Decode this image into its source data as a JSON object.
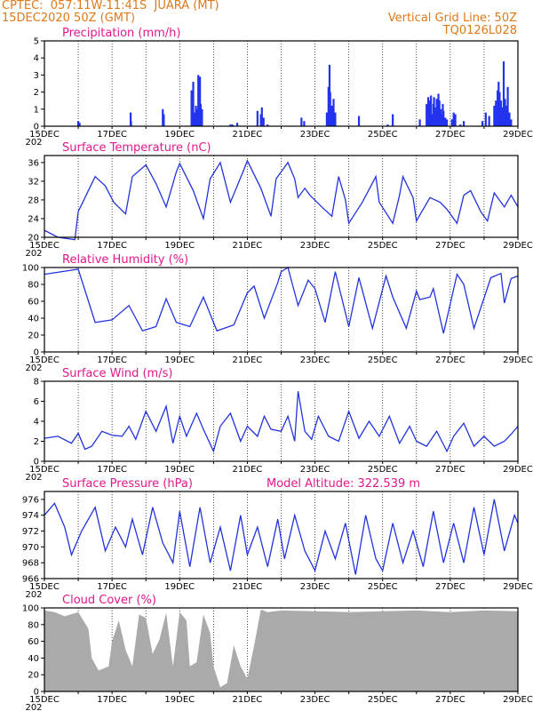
{
  "header": {
    "station": "CPTEC:  057:11W-11:41S  JUARA (MT)",
    "date": "15DEC2020 50Z (GMT)",
    "grid_note": "Vertical Grid Line: 50Z",
    "run_code": "TQ0126L028"
  },
  "x_axis": {
    "tick_labels": [
      "15DEC",
      "17DEC",
      "19DEC",
      "21DEC",
      "23DEC",
      "25DEC",
      "27DEC",
      "29DEC"
    ],
    "year_fragment": "202"
  },
  "colors": {
    "line": "#2233dd",
    "bars": "#2233ee",
    "cloud": "#aaaaaa",
    "title": "#e0188c",
    "header": "#e07818"
  },
  "chart_data": [
    {
      "type": "bar",
      "title": "Precipitation (mm/h)",
      "ylim": [
        0,
        5
      ],
      "yticks": [
        0,
        1,
        2,
        3,
        4,
        5
      ],
      "x": [
        1.0,
        1.04,
        2.55,
        2.56,
        3.5,
        3.53,
        4.35,
        4.4,
        4.45,
        4.48,
        4.52,
        4.55,
        4.6,
        4.62,
        4.66,
        5.5,
        5.56,
        5.7,
        6.3,
        6.4,
        6.43,
        6.48,
        6.6,
        7.6,
        7.68,
        8.35,
        8.4,
        8.43,
        8.45,
        8.5,
        8.55,
        8.6,
        9.3,
        10.15,
        10.3,
        11.1,
        11.3,
        11.35,
        11.38,
        11.4,
        11.43,
        11.45,
        11.5,
        11.52,
        11.55,
        11.6,
        11.63,
        11.65,
        11.68,
        11.72,
        11.75,
        11.78,
        11.8,
        11.85,
        11.9,
        12.05,
        12.1,
        12.15,
        12.3,
        12.4,
        12.95,
        13.05,
        13.15,
        13.3,
        13.35,
        13.4,
        13.43,
        13.46,
        13.5,
        13.55,
        13.58,
        13.62,
        13.66,
        13.7,
        13.75,
        13.8
      ],
      "values": [
        0.3,
        0.2,
        0.8,
        0.3,
        1.0,
        0.7,
        2.1,
        2.6,
        0.8,
        1.2,
        1.0,
        3.0,
        2.9,
        1.3,
        1.0,
        0.1,
        0.1,
        0.2,
        0.9,
        0.7,
        1.1,
        0.5,
        0.1,
        0.5,
        0.3,
        0.8,
        2.3,
        3.6,
        2.0,
        1.2,
        1.6,
        0.8,
        0.6,
        0.1,
        0.7,
        0.4,
        1.3,
        1.7,
        1.2,
        1.5,
        1.8,
        0.7,
        1.3,
        1.7,
        1.1,
        1.6,
        0.9,
        1.9,
        1.5,
        1.0,
        0.7,
        1.3,
        0.9,
        0.5,
        0.4,
        0.4,
        0.8,
        0.7,
        0.1,
        0.3,
        0.3,
        0.8,
        0.6,
        1.2,
        1.5,
        2.1,
        2.6,
        2.0,
        1.5,
        1.1,
        3.8,
        1.6,
        1.2,
        2.3,
        0.8,
        0.4
      ]
    },
    {
      "type": "line",
      "title": "Surface Temperature (nC)",
      "ylim": [
        20,
        37.5
      ],
      "yticks": [
        20,
        24,
        28,
        32,
        36
      ],
      "x": [
        0.0,
        0.4,
        0.9,
        1.0,
        1.5,
        1.8,
        2.05,
        2.4,
        2.6,
        3.0,
        3.3,
        3.6,
        3.9,
        4.0,
        4.4,
        4.7,
        4.9,
        5.2,
        5.5,
        5.9,
        6.0,
        6.4,
        6.7,
        6.85,
        7.2,
        7.4,
        7.5,
        7.7,
        7.85,
        8.2,
        8.5,
        8.7,
        8.9,
        9.0,
        9.4,
        9.8,
        9.9,
        10.3,
        10.5,
        10.6,
        10.9,
        11.0,
        11.4,
        11.7,
        11.9,
        12.2,
        12.4,
        12.6,
        12.9,
        13.1,
        13.3,
        13.6,
        13.8,
        14.0
      ],
      "values": [
        21.5,
        20.0,
        19.5,
        25.5,
        33.0,
        31.0,
        27.5,
        25.0,
        33.0,
        35.5,
        31.5,
        26.5,
        34.0,
        35.8,
        30.0,
        24.0,
        32.5,
        36.0,
        27.5,
        34.5,
        36.4,
        30.5,
        24.5,
        32.5,
        36.0,
        32.5,
        28.5,
        30.5,
        29.0,
        26.5,
        24.5,
        33.0,
        28.0,
        23.0,
        27.5,
        33.0,
        27.5,
        23.0,
        29.0,
        33.0,
        28.5,
        23.5,
        28.5,
        27.5,
        26.0,
        23.0,
        29.0,
        30.0,
        25.5,
        23.5,
        29.5,
        26.5,
        29.0,
        26.5
      ]
    },
    {
      "type": "line",
      "title": "Relative Humidity (%)",
      "ylim": [
        0,
        100
      ],
      "yticks": [
        0,
        20,
        40,
        60,
        80,
        100
      ],
      "x": [
        0.0,
        0.5,
        1.0,
        1.5,
        2.0,
        2.5,
        2.9,
        3.3,
        3.6,
        3.9,
        4.3,
        4.7,
        5.1,
        5.6,
        6.0,
        6.2,
        6.5,
        6.9,
        7.0,
        7.2,
        7.5,
        7.8,
        8.0,
        8.3,
        8.6,
        9.0,
        9.3,
        9.7,
        10.1,
        10.3,
        10.7,
        11.0,
        11.1,
        11.4,
        11.5,
        11.8,
        12.2,
        12.4,
        12.7,
        13.2,
        13.5,
        13.6,
        13.8,
        14.0
      ],
      "values": [
        92,
        95,
        98,
        35,
        38,
        55,
        25,
        30,
        63,
        35,
        30,
        65,
        25,
        32,
        70,
        78,
        40,
        82,
        95,
        100,
        55,
        85,
        75,
        35,
        95,
        30,
        88,
        28,
        90,
        65,
        28,
        72,
        62,
        65,
        75,
        22,
        92,
        80,
        28,
        88,
        93,
        58,
        87,
        90
      ]
    },
    {
      "type": "line",
      "title": "Surface Wind (m/s)",
      "ylim": [
        0,
        8
      ],
      "yticks": [
        0,
        2,
        4,
        6,
        8
      ],
      "x": [
        0.0,
        0.4,
        0.8,
        1.0,
        1.2,
        1.4,
        1.7,
        2.0,
        2.3,
        2.5,
        2.7,
        3.0,
        3.3,
        3.6,
        3.8,
        4.0,
        4.2,
        4.5,
        4.7,
        5.0,
        5.2,
        5.5,
        5.8,
        6.0,
        6.3,
        6.5,
        6.7,
        7.0,
        7.2,
        7.4,
        7.5,
        7.7,
        7.9,
        8.1,
        8.4,
        8.7,
        9.0,
        9.3,
        9.6,
        9.9,
        10.2,
        10.5,
        10.8,
        11.0,
        11.3,
        11.6,
        11.9,
        12.1,
        12.4,
        12.7,
        13.0,
        13.3,
        13.6,
        13.8,
        14.0
      ],
      "values": [
        2.3,
        2.5,
        1.8,
        2.8,
        1.2,
        1.5,
        3.0,
        2.6,
        2.5,
        3.5,
        2.2,
        5.0,
        3.0,
        5.5,
        1.8,
        4.5,
        2.5,
        4.8,
        3.2,
        1.0,
        3.5,
        4.8,
        2.0,
        3.5,
        2.5,
        4.5,
        3.2,
        3.0,
        4.5,
        2.0,
        7.0,
        3.0,
        2.2,
        4.5,
        2.5,
        2.0,
        5.0,
        2.3,
        4.0,
        2.5,
        4.5,
        1.8,
        3.5,
        2.0,
        1.5,
        3.0,
        1.0,
        2.5,
        3.8,
        1.5,
        2.5,
        1.5,
        2.0,
        2.7,
        3.5
      ]
    },
    {
      "type": "line",
      "title": "Surface Pressure (hPa)",
      "subtitle": "Model Altitude: 322.539 m",
      "ylim": [
        966,
        977
      ],
      "yticks": [
        966,
        968,
        970,
        972,
        974,
        976
      ],
      "x": [
        0.0,
        0.3,
        0.6,
        0.8,
        1.1,
        1.5,
        1.8,
        2.1,
        2.4,
        2.6,
        2.9,
        3.2,
        3.5,
        3.8,
        4.0,
        4.3,
        4.6,
        4.9,
        5.2,
        5.5,
        5.8,
        6.0,
        6.3,
        6.6,
        6.9,
        7.1,
        7.4,
        7.7,
        8.0,
        8.3,
        8.6,
        8.9,
        9.2,
        9.5,
        9.8,
        10.0,
        10.3,
        10.6,
        10.9,
        11.2,
        11.5,
        11.8,
        12.1,
        12.4,
        12.7,
        13.0,
        13.3,
        13.6,
        13.9,
        14.0
      ],
      "values": [
        974.0,
        975.5,
        972.5,
        969.0,
        972.0,
        975.0,
        969.5,
        972.5,
        970.0,
        973.5,
        969.0,
        975.0,
        970.5,
        968.0,
        974.5,
        967.5,
        975.0,
        968.0,
        972.5,
        967.0,
        974.0,
        969.0,
        972.5,
        967.5,
        973.5,
        968.5,
        974.0,
        969.5,
        967.0,
        972.0,
        968.5,
        973.0,
        966.5,
        974.0,
        968.5,
        967.0,
        973.0,
        968.0,
        972.0,
        967.5,
        974.5,
        968.0,
        973.0,
        968.0,
        975.0,
        969.0,
        976.0,
        969.5,
        974.0,
        973.0
      ]
    },
    {
      "type": "area",
      "title": "Cloud Cover (%)",
      "ylim": [
        0,
        100
      ],
      "yticks": [
        0,
        20,
        40,
        60,
        80,
        100
      ],
      "x": [
        0.0,
        0.3,
        0.6,
        1.0,
        1.3,
        1.4,
        1.6,
        1.9,
        2.0,
        2.2,
        2.4,
        2.6,
        2.8,
        3.0,
        3.2,
        3.4,
        3.6,
        3.8,
        4.0,
        4.2,
        4.3,
        4.5,
        4.7,
        4.9,
        5.0,
        5.2,
        5.4,
        5.6,
        5.8,
        6.0,
        6.2,
        6.4,
        6.6,
        7.0,
        8.0,
        9.0,
        10.0,
        11.0,
        12.0,
        13.0,
        14.0
      ],
      "values": [
        97,
        95,
        90,
        95,
        75,
        40,
        25,
        30,
        60,
        85,
        50,
        30,
        92,
        88,
        45,
        62,
        94,
        30,
        95,
        85,
        30,
        35,
        92,
        70,
        30,
        5,
        10,
        55,
        30,
        15,
        55,
        98,
        95,
        97,
        96,
        95,
        96,
        97,
        95,
        97,
        96
      ]
    }
  ]
}
